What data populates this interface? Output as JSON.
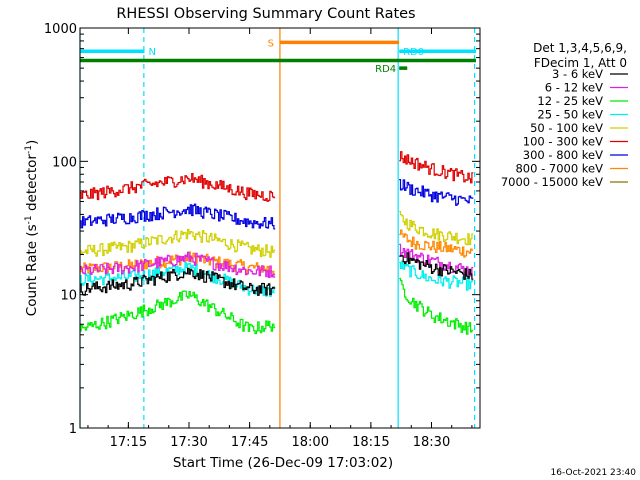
{
  "chart_data": {
    "type": "line",
    "title": "RHESSI Observing Summary Count Rates",
    "xlabel": "Start Time (26-Dec-09 17:03:02)",
    "ylabel_main": "Count Rate (s",
    "ylabel_sup1": "-1",
    "ylabel_mid": " detector",
    "ylabel_sup2": "-1",
    "ylabel_end": ")",
    "y_scale": "log",
    "ylim": [
      1,
      1000
    ],
    "xlim": [
      "17:03:02",
      "18:42:00"
    ],
    "x_ticks": [
      "17:15",
      "17:30",
      "17:45",
      "18:00",
      "18:15",
      "18:30"
    ],
    "y_ticks": [
      "1",
      "10",
      "100",
      "1000"
    ],
    "footer_date": "16-Oct-2021 23:40",
    "legend": {
      "header1": "Det 1,3,4,5,6,9,",
      "header2": "FDecim 1, Att 0"
    },
    "data_gap": [
      "17:52:30",
      "18:22:00"
    ],
    "series": [
      {
        "name": "3 - 6 keV",
        "color": "#000000",
        "segment1": [
          [
            "17:03",
            11
          ],
          [
            "17:15",
            12
          ],
          [
            "17:30",
            15
          ],
          [
            "17:45",
            11
          ],
          [
            "17:51",
            11
          ]
        ],
        "segment2": [
          [
            "18:22",
            20
          ],
          [
            "18:25",
            18
          ],
          [
            "18:30",
            16
          ],
          [
            "18:40",
            14
          ]
        ]
      },
      {
        "name": "6 - 12 keV",
        "color": "#e020e0",
        "segment1": [
          [
            "17:03",
            15
          ],
          [
            "17:15",
            16
          ],
          [
            "17:30",
            19
          ],
          [
            "17:45",
            15
          ],
          [
            "17:51",
            15
          ]
        ],
        "segment2": [
          [
            "18:22",
            22
          ],
          [
            "18:25",
            20
          ],
          [
            "18:30",
            18
          ],
          [
            "18:40",
            15
          ]
        ]
      },
      {
        "name": "12 - 25 keV",
        "color": "#00ee00",
        "segment1": [
          [
            "17:03",
            5.5
          ],
          [
            "17:15",
            7
          ],
          [
            "17:30",
            10
          ],
          [
            "17:45",
            5.5
          ],
          [
            "17:51",
            6
          ]
        ],
        "segment2": [
          [
            "18:22",
            12
          ],
          [
            "18:25",
            9
          ],
          [
            "18:30",
            7
          ],
          [
            "18:40",
            5.5
          ]
        ]
      },
      {
        "name": "25 - 50 keV",
        "color": "#00eeee",
        "segment1": [
          [
            "17:03",
            13
          ],
          [
            "17:15",
            13.5
          ],
          [
            "17:30",
            16
          ],
          [
            "17:45",
            11
          ],
          [
            "17:51",
            10.5
          ]
        ],
        "segment2": [
          [
            "18:22",
            17
          ],
          [
            "18:25",
            15
          ],
          [
            "18:30",
            13
          ],
          [
            "18:40",
            12
          ]
        ]
      },
      {
        "name": "50 - 100 keV",
        "color": "#d0d000",
        "segment1": [
          [
            "17:03",
            21
          ],
          [
            "17:15",
            23
          ],
          [
            "17:30",
            29
          ],
          [
            "17:45",
            22
          ],
          [
            "17:51",
            21
          ]
        ],
        "segment2": [
          [
            "18:22",
            38
          ],
          [
            "18:25",
            33
          ],
          [
            "18:30",
            29
          ],
          [
            "18:40",
            26
          ]
        ]
      },
      {
        "name": "100 - 300 keV",
        "color": "#e00000",
        "segment1": [
          [
            "17:03",
            55
          ],
          [
            "17:15",
            63
          ],
          [
            "17:30",
            75
          ],
          [
            "17:45",
            57
          ],
          [
            "17:51",
            55
          ]
        ],
        "segment2": [
          [
            "18:22",
            110
          ],
          [
            "18:25",
            100
          ],
          [
            "18:30",
            88
          ],
          [
            "18:40",
            74
          ]
        ]
      },
      {
        "name": "300 - 800 keV",
        "color": "#0000e0",
        "segment1": [
          [
            "17:03",
            35
          ],
          [
            "17:15",
            38
          ],
          [
            "17:30",
            44
          ],
          [
            "17:45",
            35
          ],
          [
            "17:51",
            34
          ]
        ],
        "segment2": [
          [
            "18:22",
            68
          ],
          [
            "18:25",
            62
          ],
          [
            "18:30",
            56
          ],
          [
            "18:40",
            50
          ]
        ]
      },
      {
        "name": "800 - 7000 keV",
        "color": "#ff8800",
        "segment1": [
          [
            "17:03",
            15.5
          ],
          [
            "17:15",
            16.5
          ],
          [
            "17:30",
            19
          ],
          [
            "17:45",
            16
          ],
          [
            "17:51",
            15.5
          ]
        ],
        "segment2": [
          [
            "18:22",
            28
          ],
          [
            "18:25",
            25
          ],
          [
            "18:30",
            23
          ],
          [
            "18:40",
            21
          ]
        ]
      },
      {
        "name": "7000 - 15000 keV",
        "color": "#907000",
        "segment1": [],
        "segment2": []
      }
    ],
    "flags": [
      {
        "label": "N",
        "color": "#00e0ff",
        "start": "17:03",
        "end": "17:19",
        "level": 670
      },
      {
        "label": "S",
        "color": "#ff8000",
        "start": "17:52:30",
        "end": "18:22",
        "level": 780
      },
      {
        "label": "RD0",
        "color": "#00e0ff",
        "start": "18:22",
        "end": "18:41",
        "level": 670
      },
      {
        "label": "RD4",
        "color": "#008000",
        "start": "18:22",
        "end": "18:24",
        "level": 500
      },
      {
        "label": "",
        "color": "#008000",
        "start": "17:03",
        "end": "18:41",
        "level": 570
      }
    ],
    "markers": [
      {
        "time": "17:03:02",
        "color": "#00e0ff",
        "style": "solid"
      },
      {
        "time": "17:18:50",
        "color": "#00e0ff",
        "style": "dashed"
      },
      {
        "time": "17:52:30",
        "color": "#ff8000",
        "style": "solid"
      },
      {
        "time": "18:21:45",
        "color": "#00e0ff",
        "style": "solid"
      },
      {
        "time": "18:40:40",
        "color": "#00e0ff",
        "style": "dashed"
      }
    ]
  }
}
